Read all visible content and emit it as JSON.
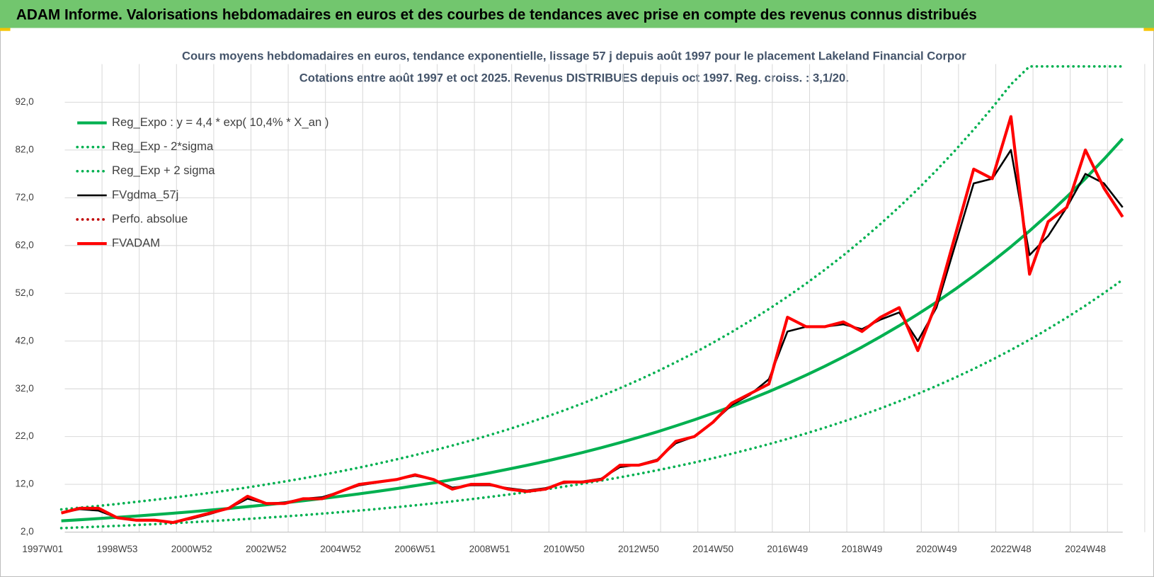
{
  "header": "ADAM Informe. Valorisations hebdomadaires en euros et des courbes de tendances avec prise en compte des revenus connus distribués",
  "chart_data": {
    "type": "line",
    "title": "Cours moyens hebdomadaires en euros, tendance exponentielle, lissage 57 j depuis août 1997 pour le placement Lakeland Financial Corpor",
    "subtitle": "Cotations entre août 1997 et oct 2025. Revenus DISTRIBUES depuis oct 1997. Reg. croiss. : 3,1/20.",
    "categories": [
      "1997W01",
      null,
      null,
      null,
      "1998W53",
      null,
      null,
      null,
      "2000W52",
      null,
      null,
      null,
      "2002W52",
      null,
      null,
      null,
      "2004W52",
      null,
      null,
      null,
      "2006W51",
      null,
      null,
      null,
      "2008W51",
      null,
      null,
      null,
      "2010W50",
      null,
      null,
      null,
      "2012W50",
      null,
      null,
      null,
      "2014W50",
      null,
      null,
      null,
      "2016W49",
      null,
      null,
      null,
      "2018W49",
      null,
      null,
      null,
      "2020W49",
      null,
      null,
      null,
      "2022W48",
      null,
      null,
      null,
      "2024W48",
      null,
      null
    ],
    "ylim": [
      2,
      100
    ],
    "yticks": [
      {
        "value": 2,
        "label": "2,0"
      },
      {
        "value": 12,
        "label": "12,0"
      },
      {
        "value": 22,
        "label": "22,0"
      },
      {
        "value": 32,
        "label": "32,0"
      },
      {
        "value": 42,
        "label": "42,0"
      },
      {
        "value": 52,
        "label": "52,0"
      },
      {
        "value": 62,
        "label": "62,0"
      },
      {
        "value": 72,
        "label": "72,0"
      },
      {
        "value": 82,
        "label": "82,0"
      },
      {
        "value": 92,
        "label": "92,0"
      }
    ],
    "grid": true,
    "legend": "top-left",
    "series": [
      {
        "name": "Reg_Expo : y = 4,4 * exp( 10,4% *  X_an )",
        "color": "#00b050",
        "style": "solid",
        "values": [
          null,
          4.35,
          4.59,
          4.83,
          5.09,
          5.36,
          5.65,
          5.95,
          6.27,
          6.6,
          6.95,
          7.33,
          7.72,
          8.13,
          8.56,
          9.02,
          9.5,
          10.01,
          10.54,
          11.11,
          11.7,
          12.32,
          12.98,
          13.67,
          14.4,
          15.17,
          15.98,
          16.83,
          17.73,
          18.68,
          19.67,
          20.72,
          21.83,
          22.99,
          24.23,
          25.51,
          26.88,
          28.31,
          29.83,
          31.42,
          33.09,
          34.86,
          36.72,
          38.67,
          40.74,
          42.92,
          45.21,
          47.62,
          50.16,
          52.84,
          55.66,
          58.63,
          61.76,
          65.05,
          68.53,
          72.18,
          76.03,
          80.09,
          84.37
        ]
      },
      {
        "name": "Reg_Exp - 2*sigma",
        "color": "#00b050",
        "style": "dotted",
        "values": [
          null,
          2.83,
          2.98,
          3.14,
          3.31,
          3.48,
          3.67,
          3.87,
          4.08,
          4.29,
          4.52,
          4.76,
          5.02,
          5.28,
          5.56,
          5.86,
          6.18,
          6.51,
          6.85,
          7.22,
          7.61,
          8.01,
          8.44,
          8.89,
          9.36,
          9.86,
          10.39,
          10.94,
          11.52,
          12.14,
          12.79,
          13.47,
          14.19,
          14.94,
          15.75,
          16.58,
          17.47,
          18.4,
          19.39,
          20.42,
          21.51,
          22.66,
          23.87,
          25.14,
          26.48,
          27.9,
          29.39,
          30.95,
          32.6,
          34.35,
          36.18,
          38.11,
          40.14,
          42.28,
          44.54,
          46.92,
          49.42,
          52.06,
          54.84
        ]
      },
      {
        "name": "Reg_Exp + 2 sigma",
        "color": "#00b050",
        "style": "dotted",
        "values": [
          null,
          6.74,
          7.11,
          7.49,
          7.89,
          8.31,
          8.76,
          9.22,
          9.72,
          10.23,
          10.77,
          11.36,
          11.97,
          12.6,
          13.27,
          13.98,
          14.73,
          15.52,
          16.34,
          17.22,
          18.14,
          19.1,
          20.12,
          21.19,
          22.32,
          23.51,
          24.77,
          26.09,
          27.48,
          28.95,
          30.49,
          32.12,
          33.84,
          35.63,
          37.56,
          39.54,
          41.66,
          43.88,
          46.24,
          48.7,
          51.29,
          54.03,
          56.92,
          59.94,
          63.15,
          66.53,
          70.08,
          73.81,
          77.75,
          81.9,
          86.27,
          90.86,
          95.73,
          99.5,
          99.5,
          99.5,
          99.5,
          99.5,
          99.5
        ]
      },
      {
        "name": "FVgdma_57j",
        "color": "#000000",
        "style": "solid",
        "values": [
          null,
          6,
          6.8,
          6.5,
          5,
          4.6,
          4.4,
          4.1,
          4.8,
          5.8,
          7,
          9,
          8,
          8.2,
          9,
          9.3,
          10.5,
          11.8,
          12.4,
          13,
          13.8,
          13,
          11.3,
          11.8,
          11.8,
          11.2,
          10.7,
          11.2,
          12.3,
          12.6,
          13.2,
          15.6,
          16.1,
          17.2,
          20.6,
          22,
          25,
          28.6,
          30.8,
          34,
          44,
          45,
          45,
          45.5,
          44.5,
          46.5,
          48,
          42,
          49,
          62,
          75,
          76,
          82,
          60,
          64,
          70,
          77,
          75,
          70
        ]
      },
      {
        "name": "Perfo. absolue",
        "color": "#c00000",
        "style": "dotted",
        "values": [
          null,
          null,
          null,
          null,
          null,
          null,
          null,
          null,
          null,
          null,
          null,
          null,
          null,
          null,
          null,
          null,
          null,
          null,
          null,
          null,
          null,
          null,
          null,
          null,
          null,
          null,
          null,
          null,
          null,
          null,
          null,
          null,
          null,
          null,
          null,
          null,
          null,
          null,
          null,
          null,
          null,
          null,
          null,
          null,
          null,
          null,
          null,
          null,
          null,
          null,
          null,
          null,
          null,
          null,
          null,
          null,
          null,
          null,
          null
        ]
      },
      {
        "name": "FVADAM",
        "color": "#ff0000",
        "style": "solid",
        "values": [
          null,
          6,
          7,
          7,
          5,
          4.5,
          4.5,
          4,
          5,
          6,
          7,
          9.5,
          8,
          8,
          9,
          9,
          10.5,
          12,
          12.5,
          13,
          14,
          13,
          11,
          12,
          12,
          11,
          10.5,
          11,
          12.5,
          12.5,
          13,
          16,
          16,
          17,
          21,
          22,
          25,
          29,
          31,
          33,
          47,
          45,
          45,
          46,
          44,
          47,
          49,
          40,
          50,
          64,
          78,
          76,
          89,
          56,
          67,
          70,
          82,
          74,
          68
        ]
      }
    ]
  }
}
